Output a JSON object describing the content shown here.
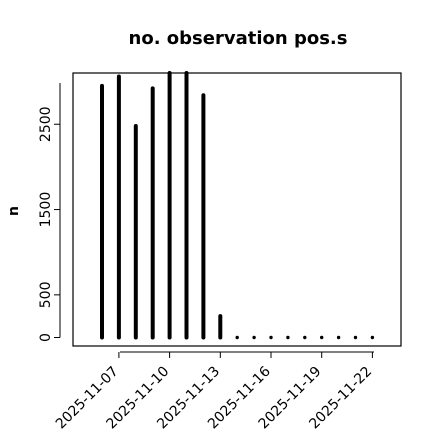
{
  "chart_data": {
    "type": "bar",
    "title": "no. observation pos.s",
    "xlabel": "",
    "ylabel": "n",
    "ylim": [
      0,
      3100
    ],
    "yticks": [
      0,
      500,
      1500,
      2500
    ],
    "x": [
      "2025-11-06",
      "2025-11-07",
      "2025-11-08",
      "2025-11-09",
      "2025-11-10",
      "2025-11-11",
      "2025-11-12",
      "2025-11-13",
      "2025-11-14",
      "2025-11-15",
      "2025-11-16",
      "2025-11-17",
      "2025-11-18",
      "2025-11-19",
      "2025-11-20",
      "2025-11-21",
      "2025-11-22"
    ],
    "values": [
      2950,
      3060,
      2480,
      2920,
      3140,
      3140,
      2840,
      250,
      0,
      0,
      0,
      0,
      0,
      0,
      0,
      0,
      0
    ],
    "xtick_labels": [
      "2025-11-07",
      "2025-11-10",
      "2025-11-13",
      "2025-11-16",
      "2025-11-19",
      "2025-11-22"
    ],
    "highlighted_tick": "2025-11-13",
    "colors": {
      "bars": "#000000",
      "highlight_tick": "#228B22",
      "tick": "#000000"
    }
  }
}
